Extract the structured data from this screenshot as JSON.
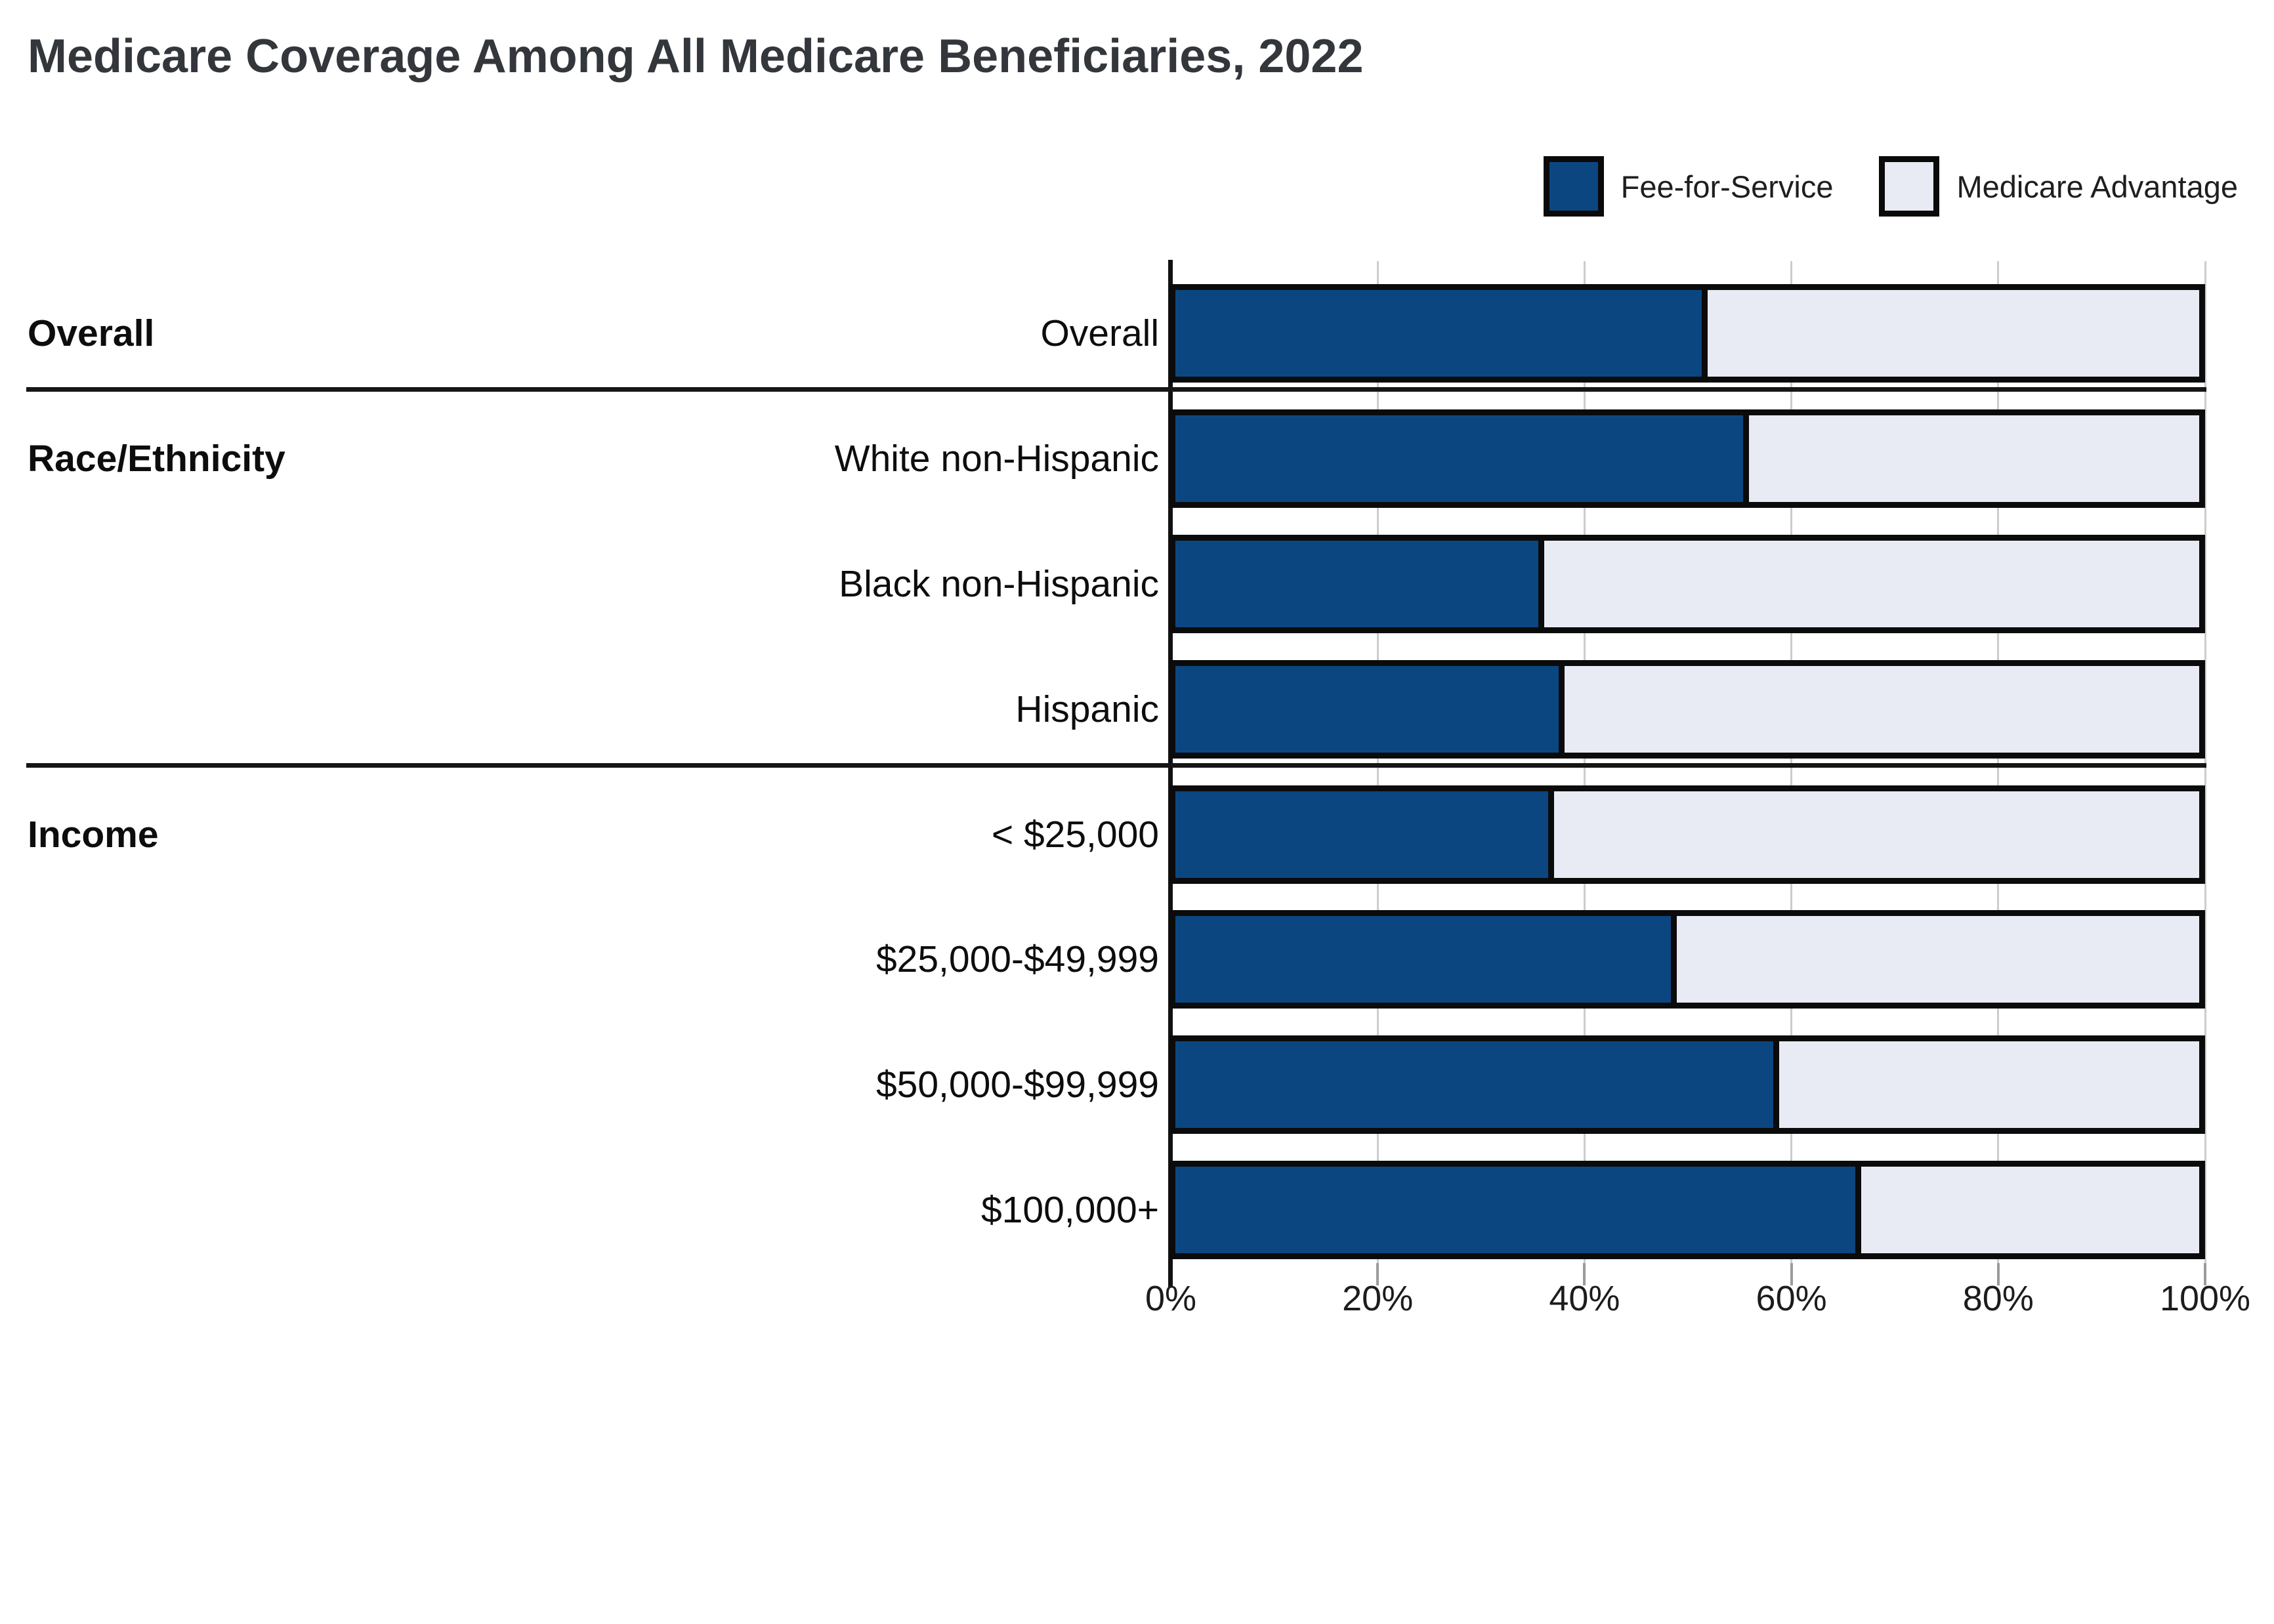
{
  "title": "Medicare Coverage Among All Medicare Beneficiaries, 2022",
  "legend": [
    {
      "label": "Fee-for-Service",
      "color": "#0c4681"
    },
    {
      "label": "Medicare Advantage",
      "color": "#e8ebf4"
    }
  ],
  "colors": {
    "fee_for_service": "#0c4681",
    "medicare_advantage": "#e8ebf4",
    "bar_border": "#0b0b0b",
    "gridline": "#cccccc",
    "axis": "#111111",
    "tick": "#9b9b9b"
  },
  "chart_data": {
    "type": "bar",
    "orientation": "horizontal",
    "stacked": true,
    "unit": "percent",
    "title": "Medicare Coverage Among All Medicare Beneficiaries, 2022",
    "legend_position": "top-right",
    "grid": true,
    "x_axis": {
      "min": 0,
      "max": 100,
      "tick_labels": [
        "0%",
        "20%",
        "40%",
        "60%",
        "80%",
        "100%"
      ]
    },
    "groups": [
      {
        "label": "Overall",
        "rows": [
          "Overall"
        ]
      },
      {
        "label": "Race/Ethnicity",
        "rows": [
          "White non-Hispanic",
          "Black non-Hispanic",
          "Hispanic"
        ]
      },
      {
        "label": "Income",
        "rows": [
          "< $25,000",
          "$25,000-$49,999",
          "$50,000-$99,999",
          "$100,000+"
        ]
      }
    ],
    "categories": [
      "Overall",
      "White non-Hispanic",
      "Black non-Hispanic",
      "Hispanic",
      "< $25,000",
      "$25,000-$49,999",
      "$50,000-$99,999",
      "$100,000+"
    ],
    "series": [
      {
        "name": "Fee-for-Service",
        "color": "#0c4681",
        "values": [
          52,
          56,
          36,
          38,
          37,
          49,
          59,
          67
        ]
      },
      {
        "name": "Medicare Advantage",
        "color": "#e8ebf4",
        "values": [
          48,
          44,
          64,
          62,
          63,
          51,
          41,
          33
        ]
      }
    ]
  }
}
